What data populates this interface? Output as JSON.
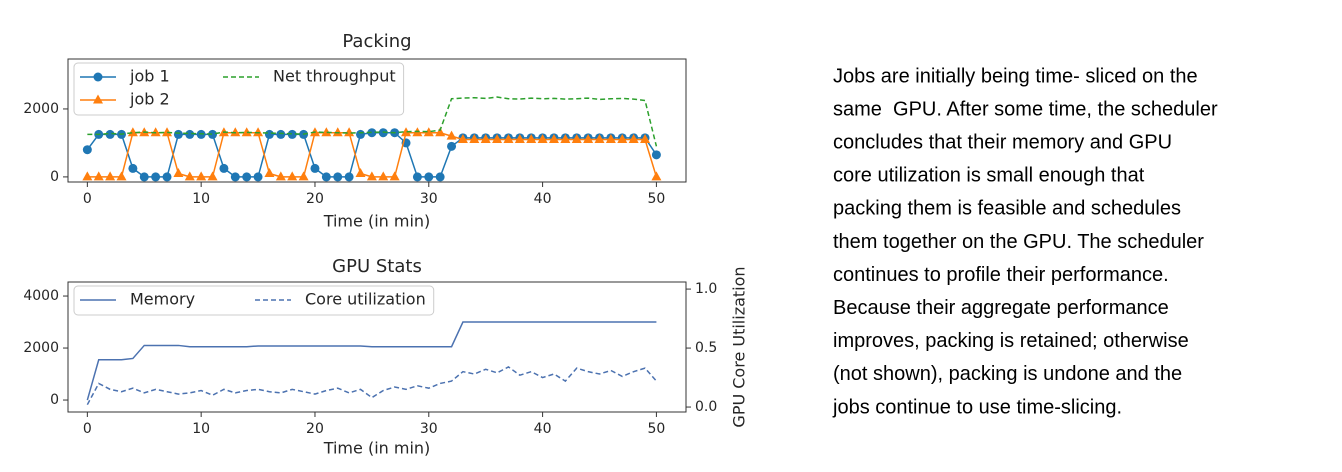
{
  "chart_data": [
    {
      "type": "line",
      "title": "Packing",
      "xlabel": "Time (in min)",
      "x": [
        0,
        1,
        2,
        3,
        4,
        5,
        6,
        7,
        8,
        9,
        10,
        11,
        12,
        13,
        14,
        15,
        16,
        17,
        18,
        19,
        20,
        21,
        22,
        23,
        24,
        25,
        26,
        27,
        28,
        29,
        30,
        31,
        32,
        33,
        34,
        35,
        36,
        37,
        38,
        39,
        40,
        41,
        42,
        43,
        44,
        45,
        46,
        47,
        48,
        49,
        50
      ],
      "series": [
        {
          "name": "job 1",
          "color": "#1f77b4",
          "marker": "circle",
          "linestyle": "solid",
          "values": [
            800,
            1250,
            1250,
            1250,
            250,
            0,
            0,
            0,
            1250,
            1250,
            1250,
            1250,
            250,
            0,
            0,
            0,
            1250,
            1250,
            1250,
            1250,
            250,
            0,
            0,
            0,
            1250,
            1300,
            1300,
            1300,
            1000,
            0,
            0,
            0,
            900,
            1150,
            1150,
            1150,
            1150,
            1150,
            1150,
            1150,
            1150,
            1150,
            1150,
            1150,
            1150,
            1150,
            1150,
            1150,
            1150,
            1150,
            650
          ]
        },
        {
          "name": "job 2",
          "color": "#ff7f0e",
          "marker": "triangle",
          "linestyle": "solid",
          "values": [
            0,
            0,
            0,
            0,
            1300,
            1300,
            1300,
            1300,
            100,
            0,
            0,
            0,
            1300,
            1300,
            1300,
            1300,
            100,
            0,
            0,
            0,
            1300,
            1300,
            1300,
            1300,
            100,
            0,
            0,
            0,
            1300,
            1300,
            1300,
            1300,
            1200,
            1100,
            1100,
            1100,
            1100,
            1100,
            1100,
            1100,
            1100,
            1100,
            1100,
            1100,
            1100,
            1100,
            1100,
            1100,
            1100,
            1100,
            0
          ]
        },
        {
          "name": "Net throughput",
          "color": "#2ca02c",
          "marker": "none",
          "linestyle": "dashed",
          "values": [
            1250,
            1250,
            1280,
            1260,
            1300,
            1320,
            1300,
            1310,
            1290,
            1280,
            1270,
            1260,
            1320,
            1300,
            1310,
            1300,
            1290,
            1280,
            1270,
            1260,
            1320,
            1310,
            1300,
            1290,
            1300,
            1310,
            1320,
            1300,
            1330,
            1340,
            1330,
            1380,
            2300,
            2320,
            2330,
            2310,
            2350,
            2300,
            2290,
            2320,
            2300,
            2310,
            2290,
            2300,
            2320,
            2280,
            2300,
            2310,
            2290,
            2250,
            900
          ]
        }
      ],
      "xlim": [
        -1.7,
        52.6
      ],
      "xticks": [
        0,
        10,
        20,
        30,
        40,
        50
      ],
      "ylim": [
        -150,
        3470
      ],
      "yticks": [
        0,
        2000
      ],
      "legend": "upper left",
      "legend_ncol": 2
    },
    {
      "type": "line",
      "title": "GPU Stats",
      "xlabel": "Time (in min)",
      "y2label": "GPU Core Utilization",
      "x": [
        0,
        1,
        2,
        3,
        4,
        5,
        6,
        7,
        8,
        9,
        10,
        11,
        12,
        13,
        14,
        15,
        16,
        17,
        18,
        19,
        20,
        21,
        22,
        23,
        24,
        25,
        26,
        27,
        28,
        29,
        30,
        31,
        32,
        33,
        34,
        35,
        36,
        37,
        38,
        39,
        40,
        41,
        42,
        43,
        44,
        45,
        46,
        47,
        48,
        49,
        50
      ],
      "series": [
        {
          "name": "Memory",
          "color": "#4c72b0",
          "marker": "none",
          "linestyle": "solid",
          "values": [
            0,
            1550,
            1550,
            1550,
            1600,
            2100,
            2100,
            2100,
            2100,
            2050,
            2050,
            2050,
            2050,
            2050,
            2050,
            2080,
            2080,
            2080,
            2080,
            2080,
            2080,
            2080,
            2080,
            2080,
            2080,
            2050,
            2050,
            2050,
            2050,
            2050,
            2050,
            2050,
            2050,
            3000,
            3000,
            3000,
            3000,
            3000,
            3000,
            3000,
            3000,
            3000,
            3000,
            3000,
            3000,
            3000,
            3000,
            3000,
            3000,
            3000,
            3000
          ]
        },
        {
          "name": "Core utilization",
          "color": "#4c72b0",
          "marker": "none",
          "linestyle": "dashed",
          "axis": "y2",
          "values": [
            0.02,
            0.2,
            0.15,
            0.13,
            0.16,
            0.12,
            0.15,
            0.13,
            0.11,
            0.12,
            0.14,
            0.1,
            0.15,
            0.12,
            0.14,
            0.15,
            0.13,
            0.12,
            0.15,
            0.13,
            0.11,
            0.14,
            0.16,
            0.12,
            0.15,
            0.08,
            0.14,
            0.17,
            0.15,
            0.18,
            0.16,
            0.2,
            0.22,
            0.3,
            0.28,
            0.32,
            0.29,
            0.34,
            0.27,
            0.3,
            0.25,
            0.28,
            0.22,
            0.33,
            0.3,
            0.28,
            0.31,
            0.26,
            0.3,
            0.33,
            0.22
          ]
        }
      ],
      "xlim": [
        -1.7,
        52.6
      ],
      "xticks": [
        0,
        10,
        20,
        30,
        40,
        50
      ],
      "ylim": [
        -460,
        4540
      ],
      "yticks": [
        0,
        2000,
        4000
      ],
      "y2lim": [
        -0.042,
        1.06
      ],
      "y2ticks": [
        {
          "value": 0,
          "label": "0.0"
        },
        0.5,
        {
          "value": 1,
          "label": "1.0"
        }
      ],
      "legend": "upper left",
      "legend_ncol": 2
    }
  ],
  "description": [
    "Jobs are initially being time- sliced on the",
    "same  GPU. After some time, the scheduler",
    "concludes that their memory and GPU",
    "core utilization is small enough that",
    "packing them is feasible and schedules",
    "them together on the GPU. The scheduler",
    "continues to profile their performance.",
    "Because their aggregate performance",
    "improves, packing is retained; otherwise",
    "(not shown), packing is undone and the",
    "jobs continue to use time-slicing."
  ]
}
